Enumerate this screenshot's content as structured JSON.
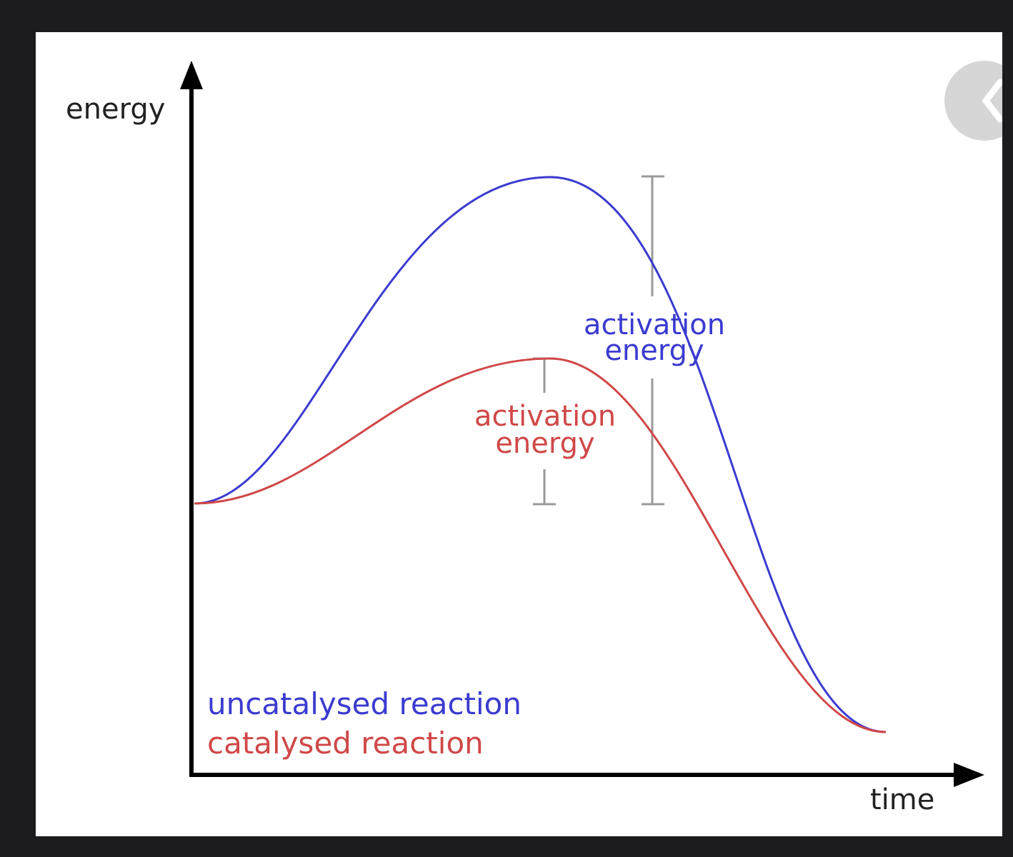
{
  "diagram": {
    "y_axis_label": "energy",
    "x_axis_label": "time",
    "uncatalysed": {
      "legend": "uncatalysed reaction",
      "annotation_line1": "activation",
      "annotation_line2": "energy",
      "color": "#3b3bd0"
    },
    "catalysed": {
      "legend": "catalysed reaction",
      "annotation_line1": "activation",
      "annotation_line2": "energy",
      "color": "#d04848"
    },
    "axis_color": "#000000",
    "bracket_color": "#9a9a9a"
  },
  "navigation": {
    "back_icon": "chevron-left-icon"
  }
}
